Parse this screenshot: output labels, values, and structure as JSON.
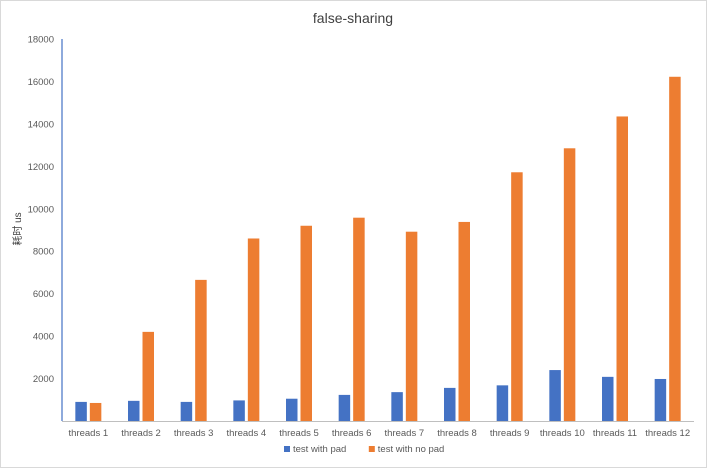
{
  "chart_data": {
    "type": "bar",
    "title": "false-sharing",
    "xlabel": "",
    "ylabel": "耗时 us",
    "ylim": [
      0,
      18000
    ],
    "yticks": [
      2000,
      4000,
      6000,
      8000,
      10000,
      12000,
      14000,
      16000,
      18000
    ],
    "grid": false,
    "legend_position": "bottom",
    "categories": [
      "threads 1",
      "threads 2",
      "threads 3",
      "threads 4",
      "threads 5",
      "threads 6",
      "threads 7",
      "threads 8",
      "threads 9",
      "threads 10",
      "threads 11",
      "threads 12"
    ],
    "series": [
      {
        "name": "test with pad",
        "color": "#4472c4",
        "values": [
          900,
          950,
          900,
          970,
          1050,
          1230,
          1360,
          1560,
          1680,
          2400,
          2080,
          1980
        ]
      },
      {
        "name": "test with no pad",
        "color": "#ed7d31",
        "values": [
          850,
          4200,
          6650,
          8600,
          9200,
          9580,
          8920,
          9380,
          11720,
          12850,
          14350,
          16220
        ]
      }
    ]
  }
}
